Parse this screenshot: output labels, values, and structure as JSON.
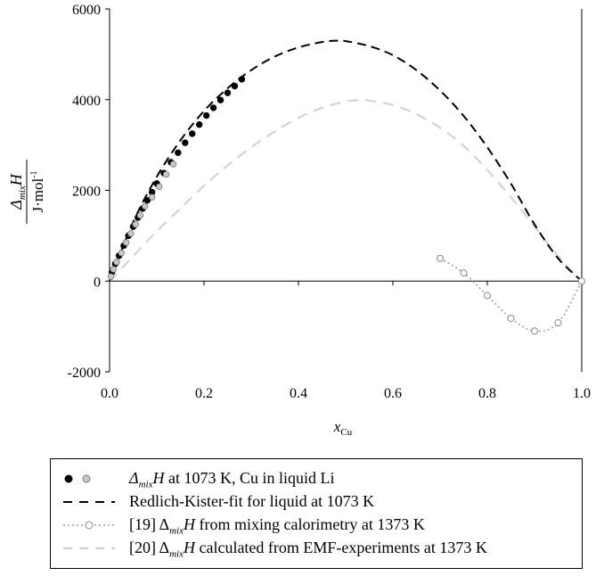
{
  "chart_data": {
    "type": "scatter",
    "xlim": [
      0,
      1
    ],
    "ylim": [
      -2000,
      6000
    ],
    "x_ticks": [
      "0.0",
      "0.2",
      "0.4",
      "0.6",
      "0.8",
      "1.0"
    ],
    "x_tick_values": [
      0,
      0.2,
      0.4,
      0.6,
      0.8,
      1.0
    ],
    "y_ticks": [
      "-2000",
      "0",
      "2000",
      "4000",
      "6000"
    ],
    "y_tick_values": [
      -2000,
      0,
      2000,
      4000,
      6000
    ],
    "xlabel": {
      "main": "x",
      "sub": "Cu"
    },
    "ylabel": {
      "numerator_main": "Δ",
      "numerator_sub": "mix",
      "numerator_end": "H",
      "denominator_main": "J·mol",
      "denominator_sup": "-1"
    },
    "grid": false,
    "legend_position": "bottom",
    "series": [
      {
        "name": "Δ_mixH at 1073 K, Cu in liquid Li (black)",
        "style": "filled-black-circle",
        "x": [
          0.005,
          0.012,
          0.02,
          0.03,
          0.04,
          0.05,
          0.06,
          0.07,
          0.08,
          0.09,
          0.1,
          0.115,
          0.13,
          0.145,
          0.16,
          0.175,
          0.19,
          0.205,
          0.22,
          0.235,
          0.25,
          0.265,
          0.28
        ],
        "y": [
          200,
          380,
          560,
          780,
          1000,
          1200,
          1400,
          1600,
          1780,
          1960,
          2150,
          2380,
          2620,
          2830,
          3050,
          3250,
          3450,
          3650,
          3820,
          3990,
          4150,
          4300,
          4450
        ]
      },
      {
        "name": "Δ_mixH at 1073 K, Cu in liquid Li (grey)",
        "style": "filled-grey-circle",
        "x": [
          0.003,
          0.008,
          0.015,
          0.025,
          0.035,
          0.045,
          0.055,
          0.065,
          0.075,
          0.09,
          0.105,
          0.12,
          0.135
        ],
        "y": [
          100,
          260,
          420,
          620,
          850,
          1050,
          1250,
          1450,
          1650,
          1850,
          2080,
          2350,
          2580
        ]
      },
      {
        "name": "Redlich-Kister-fit for liquid at 1073 K",
        "style": "black-dashed-line",
        "x": [
          0,
          0.05,
          0.1,
          0.15,
          0.2,
          0.25,
          0.3,
          0.35,
          0.4,
          0.45,
          0.48,
          0.5,
          0.55,
          0.6,
          0.65,
          0.7,
          0.75,
          0.8,
          0.85,
          0.9,
          0.95,
          1.0
        ],
        "y": [
          0,
          1300,
          2300,
          3100,
          3750,
          4250,
          4650,
          4950,
          5150,
          5270,
          5300,
          5290,
          5180,
          4980,
          4650,
          4200,
          3640,
          2950,
          2150,
          1250,
          500,
          0
        ]
      },
      {
        "name": "[19] Δ_mixH from mixing calorimetry at 1373 K",
        "style": "grey-dotted-open-circle",
        "x": [
          0.7,
          0.75,
          0.8,
          0.85,
          0.9,
          0.95,
          1.0
        ],
        "y": [
          500,
          180,
          -320,
          -820,
          -1100,
          -920,
          0
        ]
      },
      {
        "name": "[20] Δ_mixH calculated from EMF-experiments at 1373 K",
        "style": "light-grey-dashed-line",
        "x": [
          0,
          0.05,
          0.1,
          0.15,
          0.2,
          0.25,
          0.3,
          0.35,
          0.4,
          0.45,
          0.5,
          0.53,
          0.55,
          0.6,
          0.65,
          0.7,
          0.75,
          0.8,
          0.85,
          0.9,
          0.95,
          1.0
        ],
        "y": [
          0,
          550,
          1100,
          1600,
          2100,
          2550,
          2950,
          3300,
          3600,
          3820,
          3960,
          3990,
          3980,
          3880,
          3680,
          3380,
          2980,
          2450,
          1850,
          1200,
          550,
          0
        ]
      }
    ],
    "legend": [
      {
        "symbol": "filled-circles",
        "parts": [
          "Δ",
          "mix",
          "H",
          " at 1073 K, Cu in liquid Li"
        ]
      },
      {
        "symbol": "black-dashed-line",
        "parts": [
          "",
          "",
          "",
          "Redlich-Kister-fit for liquid at 1073 K"
        ]
      },
      {
        "symbol": "grey-dotted-open-circle",
        "parts": [
          "[19] Δ",
          "mix",
          "H",
          " from mixing calorimetry at 1373 K"
        ]
      },
      {
        "symbol": "light-grey-dashed-line",
        "parts": [
          "[20] Δ",
          "mix",
          "H",
          " calculated from EMF-experiments at 1373 K"
        ]
      }
    ],
    "colors": {
      "black": "#000000",
      "grey_marker": "#c8c8c8",
      "dotted_grey": "#9a9a9a",
      "light_grey_dash": "#d0d0d0"
    }
  }
}
